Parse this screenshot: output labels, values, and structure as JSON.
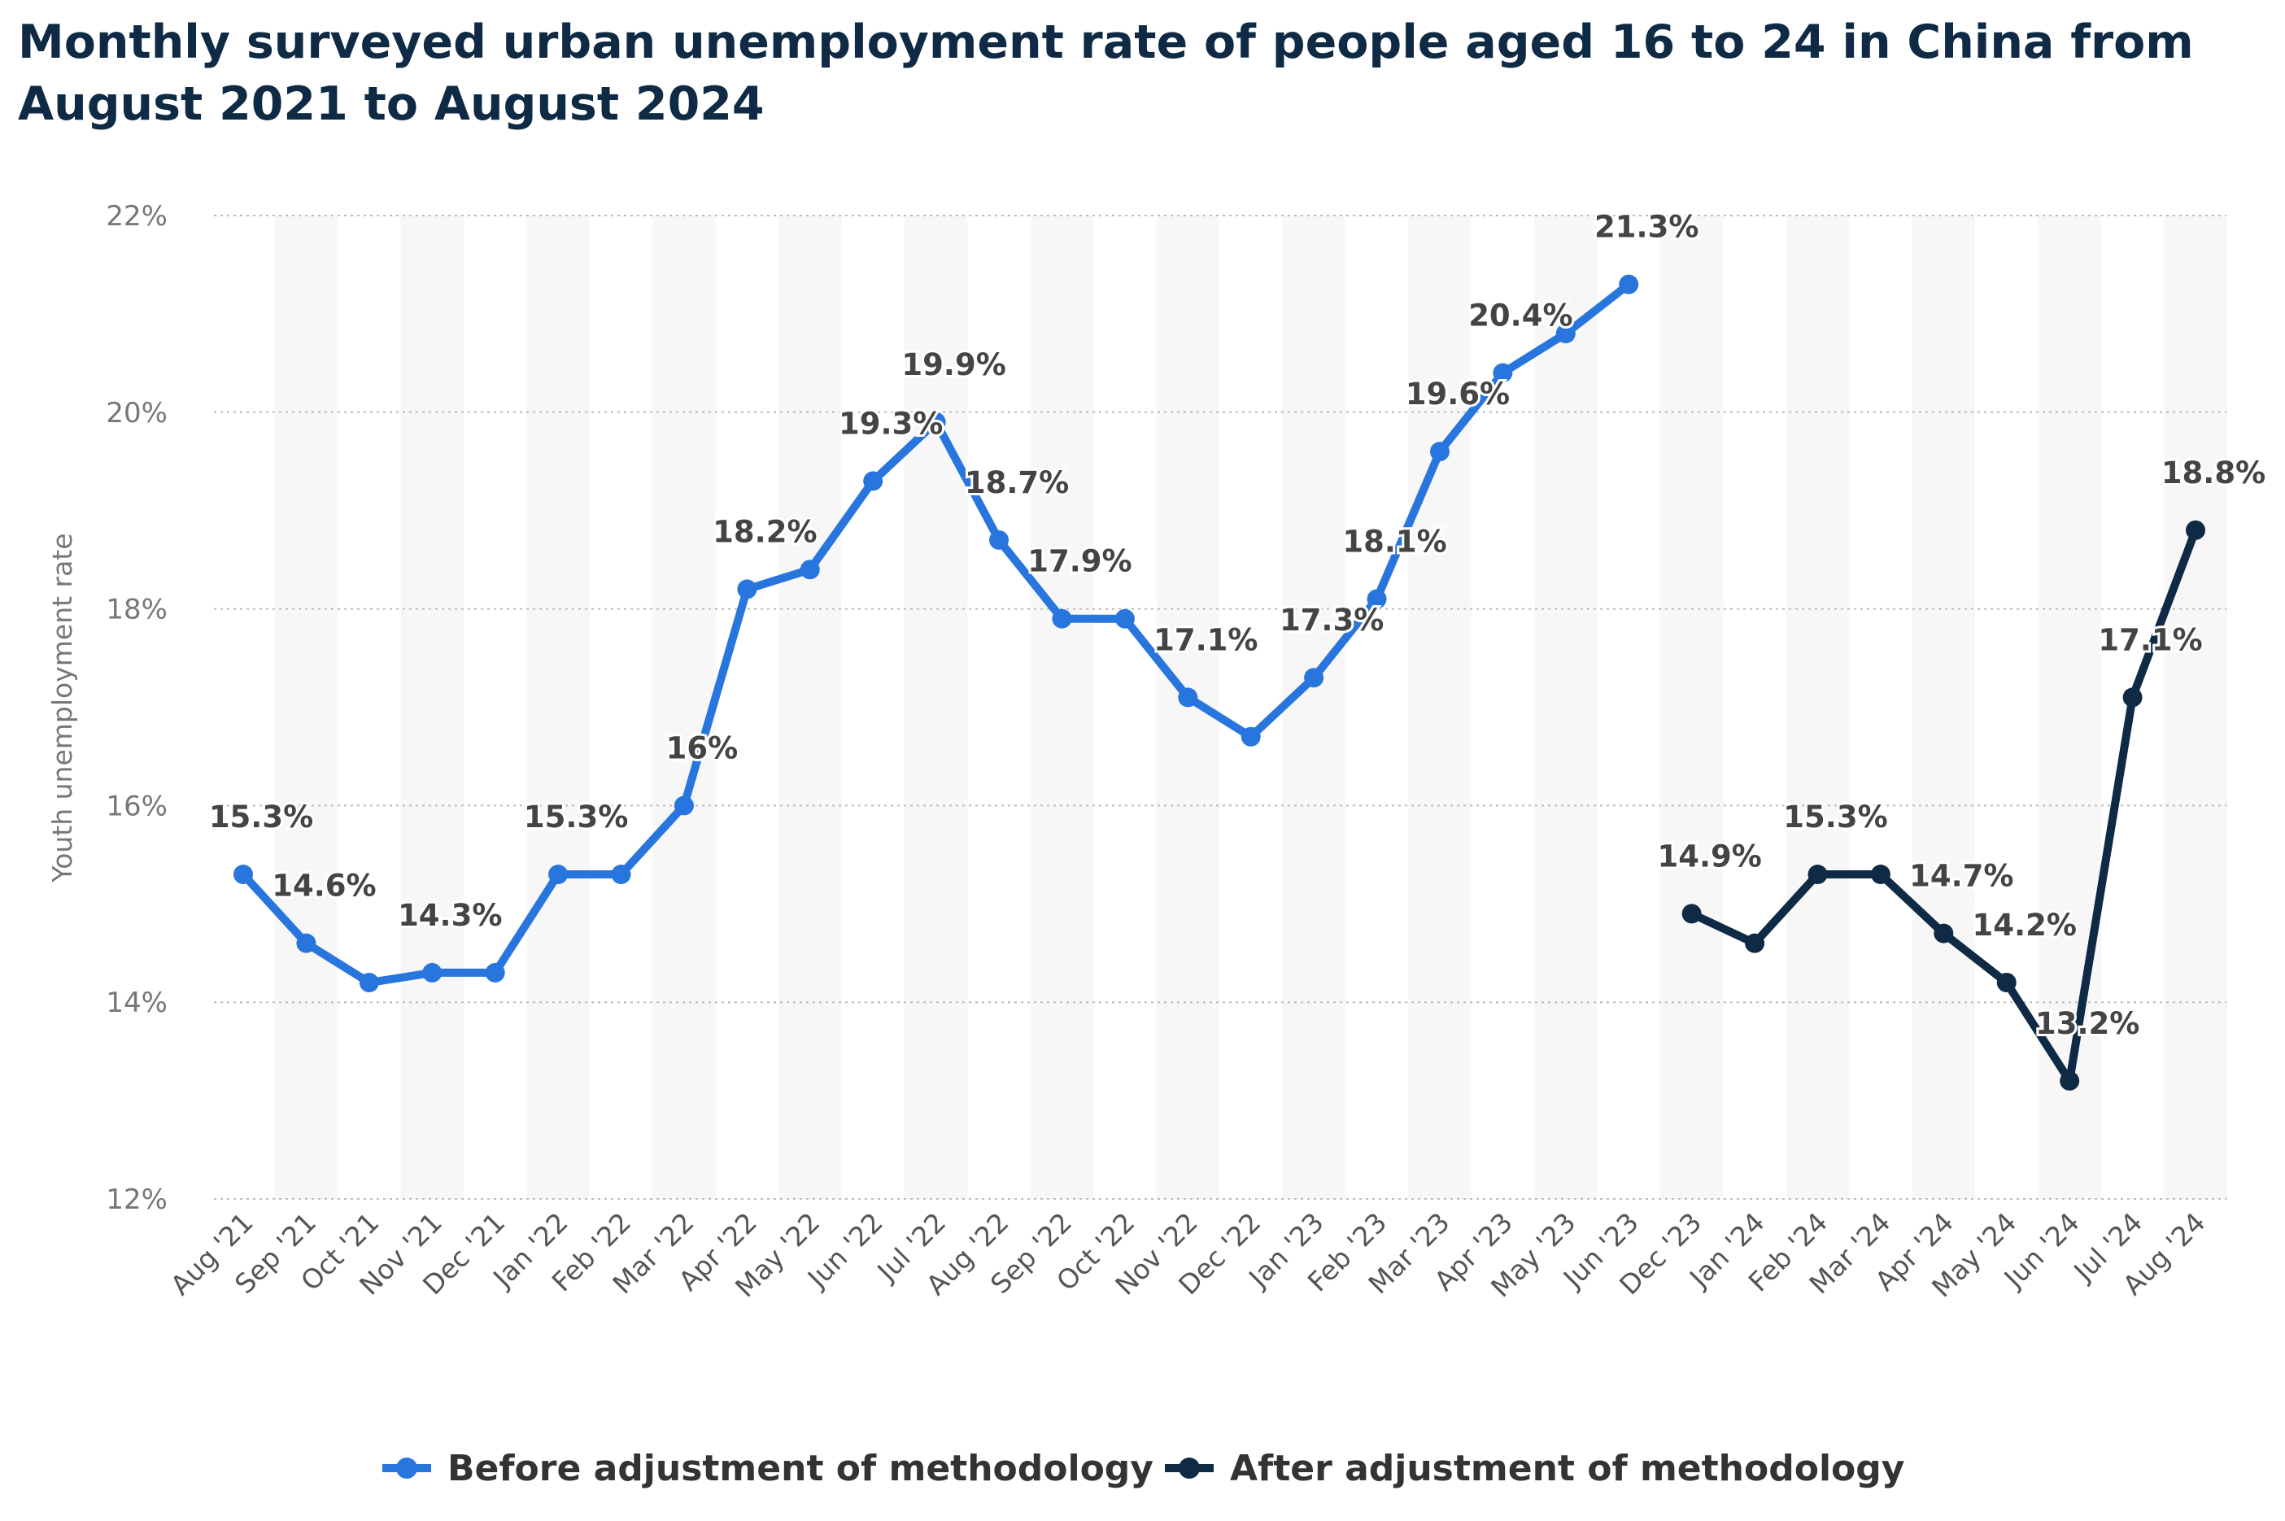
{
  "chart_data": {
    "type": "line",
    "title": "Monthly surveyed urban unemployment rate of people aged 16 to 24 in China from August 2021 to August 2024",
    "ylabel": "Youth unemployment rate",
    "xlabel": "",
    "ylim": [
      12,
      22
    ],
    "yticks": [
      "12%",
      "14%",
      "16%",
      "18%",
      "20%",
      "22%"
    ],
    "yticks_values": [
      12,
      14,
      16,
      18,
      20,
      22
    ],
    "grid": true,
    "legend": "bottom",
    "categories": [
      "Aug '21",
      "Sep '21",
      "Oct '21",
      "Nov '21",
      "Dec '21",
      "Jan '22",
      "Feb '22",
      "Mar '22",
      "Apr '22",
      "May '22",
      "Jun '22",
      "Jul '22",
      "Aug '22",
      "Sep '22",
      "Oct '22",
      "Nov '22",
      "Dec '22",
      "Jan '23",
      "Feb '23",
      "Mar '23",
      "Apr '23",
      "May '23",
      "Jun '23",
      "Dec '23",
      "Jan '24",
      "Feb '24",
      "Mar '24",
      "Apr '24",
      "May '24",
      "Jun '24",
      "Jul '24",
      "Aug '24"
    ],
    "series": [
      {
        "name": "Before adjustment of methodology",
        "color": "#2876dd",
        "values": [
          15.3,
          14.6,
          14.2,
          14.3,
          14.3,
          15.3,
          15.3,
          16.0,
          18.2,
          18.4,
          19.3,
          19.9,
          18.7,
          17.9,
          17.9,
          17.1,
          16.7,
          17.3,
          18.1,
          19.6,
          20.4,
          20.8,
          21.3,
          null,
          null,
          null,
          null,
          null,
          null,
          null,
          null,
          null
        ],
        "labels": [
          "15.3%",
          "14.6%",
          "",
          "14.3%",
          "",
          "15.3%",
          "",
          "16%",
          "18.2%",
          "",
          "19.3%",
          "19.9%",
          "18.7%",
          "17.9%",
          "",
          "17.1%",
          "",
          "17.3%",
          "18.1%",
          "19.6%",
          "20.4%",
          "",
          "21.3%",
          "",
          "",
          "",
          "",
          "",
          "",
          "",
          "",
          ""
        ]
      },
      {
        "name": "After adjustment of methodology",
        "color": "#0f2a44",
        "values": [
          null,
          null,
          null,
          null,
          null,
          null,
          null,
          null,
          null,
          null,
          null,
          null,
          null,
          null,
          null,
          null,
          null,
          null,
          null,
          null,
          null,
          null,
          null,
          14.9,
          14.6,
          15.3,
          15.3,
          14.7,
          14.2,
          13.2,
          17.1,
          18.8
        ],
        "labels": [
          "",
          "",
          "",
          "",
          "",
          "",
          "",
          "",
          "",
          "",
          "",
          "",
          "",
          "",
          "",
          "",
          "",
          "",
          "",
          "",
          "",
          "",
          "",
          "14.9%",
          "",
          "15.3%",
          "",
          "14.7%",
          "14.2%",
          "13.2%",
          "17.1%",
          "18.8%"
        ]
      }
    ]
  }
}
